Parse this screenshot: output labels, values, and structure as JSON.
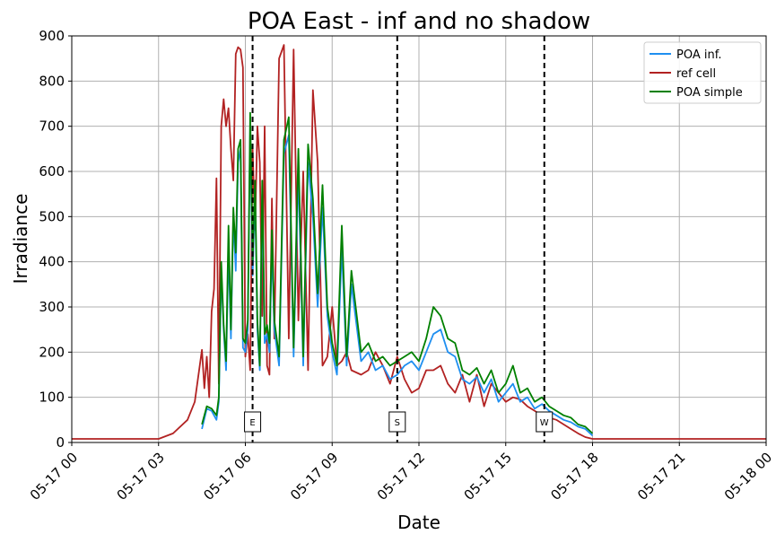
{
  "chart_data": {
    "type": "line",
    "title": "POA East - inf and no shadow",
    "xlabel": "Date",
    "ylabel": "Irradiance",
    "ylim": [
      0,
      900
    ],
    "xlim": [
      "05-17 00:00",
      "05-18 00:00"
    ],
    "x_ticks": [
      "05-17 00",
      "05-17 03",
      "05-17 06",
      "05-17 09",
      "05-17 12",
      "05-17 15",
      "05-17 18",
      "05-17 21",
      "05-18 00"
    ],
    "y_ticks": [
      0,
      100,
      200,
      300,
      400,
      500,
      600,
      700,
      800,
      900
    ],
    "grid": true,
    "legend_position": "top-right",
    "colors": {
      "POA inf.": "#1f8ff0",
      "ref cell": "#b22222",
      "POA simple": "#008000"
    },
    "vertical_markers": [
      {
        "label": "E",
        "time": "06:15"
      },
      {
        "label": "S",
        "time": "11:15"
      },
      {
        "label": "W",
        "time": "16:20"
      }
    ],
    "series": [
      {
        "name": "POA inf.",
        "x": [
          "04:30",
          "04:40",
          "04:50",
          "05:00",
          "05:05",
          "05:10",
          "05:15",
          "05:20",
          "05:25",
          "05:30",
          "05:35",
          "05:40",
          "05:45",
          "05:50",
          "05:55",
          "06:00",
          "06:05",
          "06:10",
          "06:15",
          "06:20",
          "06:25",
          "06:30",
          "06:35",
          "06:40",
          "06:45",
          "06:50",
          "06:55",
          "07:00",
          "07:10",
          "07:20",
          "07:30",
          "07:40",
          "07:50",
          "08:00",
          "08:10",
          "08:20",
          "08:30",
          "08:40",
          "08:50",
          "09:00",
          "09:10",
          "09:20",
          "09:30",
          "09:40",
          "10:00",
          "10:15",
          "10:30",
          "10:45",
          "11:00",
          "11:15",
          "11:30",
          "11:45",
          "12:00",
          "12:15",
          "12:30",
          "12:45",
          "13:00",
          "13:15",
          "13:30",
          "13:45",
          "14:00",
          "14:15",
          "14:30",
          "14:45",
          "15:00",
          "15:15",
          "15:30",
          "15:45",
          "16:00",
          "16:15",
          "16:30",
          "16:45",
          "17:00",
          "17:15",
          "17:30",
          "17:45",
          "18:00"
        ],
        "values": [
          30,
          75,
          70,
          50,
          90,
          380,
          250,
          160,
          430,
          230,
          500,
          380,
          620,
          650,
          210,
          200,
          250,
          700,
          370,
          560,
          250,
          160,
          550,
          220,
          240,
          200,
          430,
          250,
          170,
          640,
          680,
          190,
          600,
          170,
          620,
          500,
          300,
          520,
          280,
          200,
          150,
          430,
          170,
          350,
          180,
          200,
          160,
          170,
          140,
          150,
          170,
          180,
          160,
          200,
          240,
          250,
          200,
          190,
          140,
          130,
          145,
          110,
          140,
          90,
          110,
          130,
          90,
          100,
          75,
          85,
          70,
          60,
          50,
          45,
          35,
          30,
          15
        ],
        "note": ""
      },
      {
        "name": "ref cell",
        "x": [
          "00:00",
          "03:00",
          "03:30",
          "04:00",
          "04:15",
          "04:30",
          "04:35",
          "04:40",
          "04:45",
          "04:50",
          "04:55",
          "05:00",
          "05:05",
          "05:10",
          "05:15",
          "05:20",
          "05:25",
          "05:30",
          "05:35",
          "05:40",
          "05:45",
          "05:50",
          "05:55",
          "06:00",
          "06:05",
          "06:10",
          "06:15",
          "06:20",
          "06:25",
          "06:30",
          "06:35",
          "06:40",
          "06:45",
          "06:50",
          "06:55",
          "07:00",
          "07:10",
          "07:20",
          "07:30",
          "07:40",
          "07:50",
          "08:00",
          "08:10",
          "08:20",
          "08:30",
          "08:40",
          "08:50",
          "09:00",
          "09:10",
          "09:20",
          "09:30",
          "09:40",
          "10:00",
          "10:15",
          "10:30",
          "10:45",
          "11:00",
          "11:15",
          "11:30",
          "11:45",
          "12:00",
          "12:15",
          "12:30",
          "12:45",
          "13:00",
          "13:15",
          "13:30",
          "13:45",
          "14:00",
          "14:15",
          "14:30",
          "14:45",
          "15:00",
          "15:15",
          "15:30",
          "15:45",
          "16:00",
          "16:15",
          "16:30",
          "16:45",
          "17:00",
          "17:15",
          "17:30",
          "17:45",
          "18:00",
          "18:30",
          "19:00",
          "24:00"
        ],
        "values": [
          8,
          8,
          20,
          50,
          90,
          205,
          120,
          190,
          100,
          290,
          340,
          585,
          130,
          700,
          760,
          700,
          740,
          650,
          580,
          860,
          875,
          870,
          830,
          190,
          240,
          160,
          650,
          470,
          700,
          620,
          280,
          700,
          170,
          150,
          540,
          230,
          850,
          880,
          230,
          870,
          270,
          600,
          160,
          780,
          620,
          170,
          190,
          300,
          170,
          180,
          200,
          160,
          150,
          160,
          200,
          170,
          130,
          190,
          140,
          110,
          120,
          160,
          160,
          170,
          130,
          110,
          150,
          90,
          150,
          80,
          130,
          110,
          90,
          100,
          95,
          80,
          70,
          60,
          55,
          50,
          40,
          30,
          20,
          12,
          8,
          8,
          8,
          8
        ],
        "note": ""
      },
      {
        "name": "POA simple",
        "x": [
          "04:30",
          "04:40",
          "04:50",
          "05:00",
          "05:05",
          "05:10",
          "05:15",
          "05:20",
          "05:25",
          "05:30",
          "05:35",
          "05:40",
          "05:45",
          "05:50",
          "05:55",
          "06:00",
          "06:05",
          "06:10",
          "06:15",
          "06:20",
          "06:25",
          "06:30",
          "06:35",
          "06:40",
          "06:45",
          "06:50",
          "06:55",
          "07:00",
          "07:10",
          "07:20",
          "07:30",
          "07:40",
          "07:50",
          "08:00",
          "08:10",
          "08:20",
          "08:30",
          "08:40",
          "08:50",
          "09:00",
          "09:10",
          "09:20",
          "09:30",
          "09:40",
          "10:00",
          "10:15",
          "10:30",
          "10:45",
          "11:00",
          "11:15",
          "11:30",
          "11:45",
          "12:00",
          "12:15",
          "12:30",
          "12:45",
          "13:00",
          "13:15",
          "13:30",
          "13:45",
          "14:00",
          "14:15",
          "14:30",
          "14:45",
          "15:00",
          "15:15",
          "15:30",
          "15:45",
          "16:00",
          "16:15",
          "16:30",
          "16:45",
          "17:00",
          "17:15",
          "17:30",
          "17:45",
          "18:00"
        ],
        "values": [
          40,
          80,
          75,
          60,
          100,
          400,
          260,
          180,
          480,
          250,
          520,
          420,
          650,
          670,
          230,
          220,
          270,
          730,
          400,
          580,
          270,
          170,
          580,
          240,
          260,
          220,
          470,
          270,
          190,
          670,
          720,
          210,
          650,
          190,
          660,
          540,
          330,
          570,
          300,
          220,
          170,
          480,
          190,
          380,
          200,
          220,
          180,
          190,
          170,
          180,
          190,
          200,
          180,
          230,
          300,
          280,
          230,
          220,
          160,
          150,
          165,
          130,
          160,
          110,
          130,
          170,
          110,
          120,
          90,
          100,
          80,
          70,
          60,
          55,
          40,
          35,
          20
        ],
        "note": ""
      }
    ]
  }
}
